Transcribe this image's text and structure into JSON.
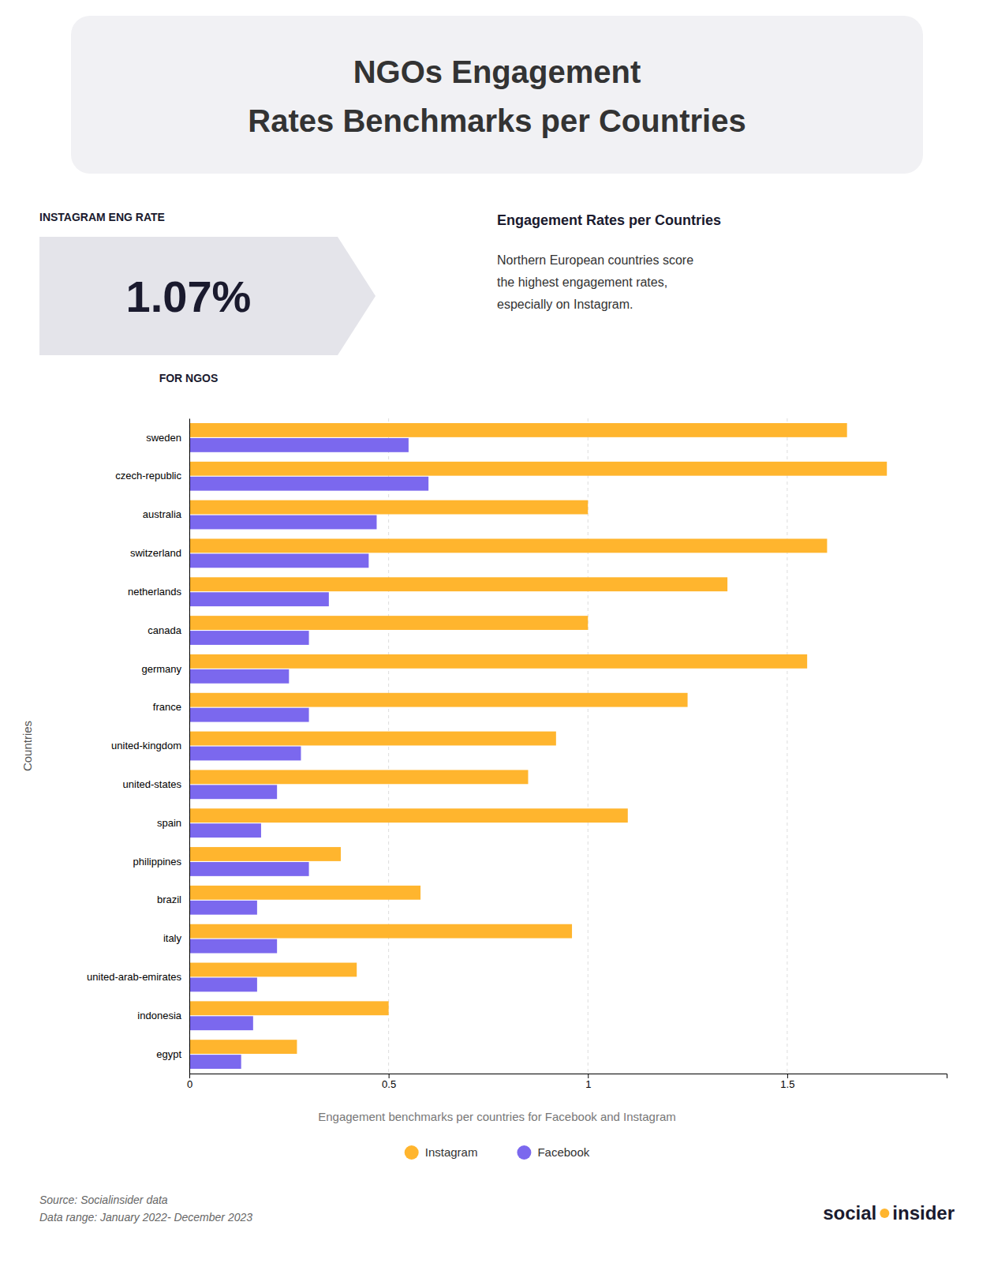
{
  "chart_data": {
    "type": "bar",
    "orientation": "horizontal",
    "title": "NGOs Engagement\nRates Benchmarks per Countries",
    "subtitle": "Engagement benchmarks per countries for Facebook and Instagram",
    "annotations": [
      "INSTAGRAM ENG RATE",
      "1.07%",
      "FOR NGOS",
      "Engagement Rates per Countries",
      "Northern European countries score\nthe highest engagement rates,\nespecially on Instagram.",
      "Source: Socialinsider data\nData range: January 2022- December 2023",
      "social",
      "insider"
    ],
    "ylabel": "Countries",
    "categories": [
      "sweden",
      "czech-republic",
      "australia",
      "switzerland",
      "netherlands",
      "canada",
      "germany",
      "france",
      "united-kingdom",
      "united-states",
      "spain",
      "philippines",
      "brazil",
      "italy",
      "united-arab-emirates",
      "indonesia",
      "egypt"
    ],
    "series": [
      {
        "name": "Instagram",
        "color": "#FFB52E",
        "values": [
          1.65,
          1.75,
          1.0,
          1.6,
          1.35,
          1.0,
          1.55,
          1.25,
          0.92,
          0.85,
          1.1,
          0.38,
          0.58,
          0.96,
          0.42,
          0.5,
          0.27
        ]
      },
      {
        "name": "Facebook",
        "color": "#7B68EE",
        "values": [
          0.55,
          0.6,
          0.47,
          0.45,
          0.35,
          0.3,
          0.25,
          0.3,
          0.28,
          0.22,
          0.18,
          0.3,
          0.17,
          0.22,
          0.17,
          0.16,
          0.13
        ]
      }
    ],
    "xlim": [
      0,
      1.9
    ],
    "xticks": [
      0,
      0.5,
      1,
      1.5
    ],
    "grid": true,
    "legend": "bottom"
  }
}
